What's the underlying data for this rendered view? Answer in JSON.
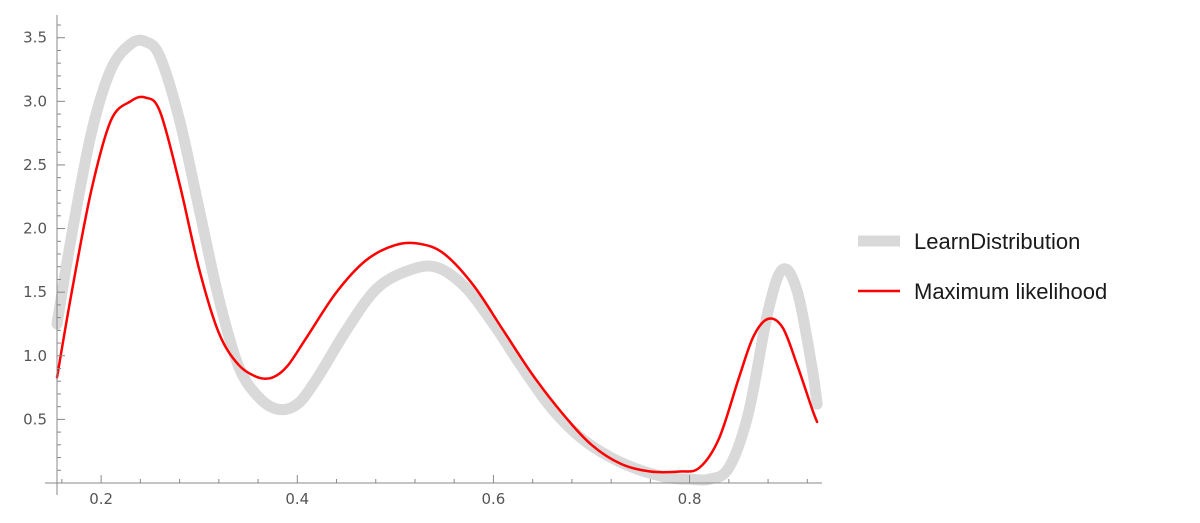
{
  "chart_data": {
    "type": "line",
    "title": "",
    "xlabel": "",
    "ylabel": "",
    "xlim": [
      0.155,
      0.935
    ],
    "ylim": [
      0.0,
      3.6
    ],
    "xticks": [
      0.2,
      0.4,
      0.6,
      0.8
    ],
    "xtick_labels": [
      "0.2",
      "0.4",
      "0.6",
      "0.8"
    ],
    "yticks": [
      0.5,
      1.0,
      1.5,
      2.0,
      2.5,
      3.0,
      3.5
    ],
    "ytick_labels": [
      "0.5",
      "1.0",
      "1.5",
      "2.0",
      "2.5",
      "3.0",
      "3.5"
    ],
    "grid": false,
    "legend_position": "right",
    "series": [
      {
        "name": "LearnDistribution",
        "color": "#d9d9d9",
        "x": [
          0.155,
          0.17,
          0.19,
          0.21,
          0.23,
          0.245,
          0.26,
          0.28,
          0.3,
          0.32,
          0.34,
          0.36,
          0.38,
          0.4,
          0.42,
          0.45,
          0.48,
          0.51,
          0.54,
          0.57,
          0.6,
          0.63,
          0.66,
          0.69,
          0.72,
          0.75,
          0.78,
          0.8,
          0.82,
          0.84,
          0.86,
          0.88,
          0.895,
          0.91,
          0.925,
          0.93
        ],
        "y": [
          1.25,
          1.95,
          2.75,
          3.25,
          3.45,
          3.47,
          3.35,
          2.85,
          2.15,
          1.45,
          0.92,
          0.68,
          0.58,
          0.62,
          0.82,
          1.2,
          1.52,
          1.66,
          1.7,
          1.55,
          1.25,
          0.9,
          0.58,
          0.35,
          0.2,
          0.1,
          0.04,
          0.03,
          0.03,
          0.12,
          0.55,
          1.35,
          1.68,
          1.5,
          0.9,
          0.62
        ]
      },
      {
        "name": "Maximum likelihood",
        "color": "#ff0000",
        "x": [
          0.155,
          0.17,
          0.19,
          0.21,
          0.23,
          0.245,
          0.26,
          0.28,
          0.3,
          0.32,
          0.34,
          0.36,
          0.375,
          0.39,
          0.41,
          0.44,
          0.47,
          0.5,
          0.525,
          0.55,
          0.58,
          0.61,
          0.64,
          0.67,
          0.7,
          0.73,
          0.76,
          0.79,
          0.81,
          0.83,
          0.85,
          0.865,
          0.88,
          0.895,
          0.91,
          0.925,
          0.93
        ],
        "y": [
          0.83,
          1.5,
          2.3,
          2.85,
          3.0,
          3.03,
          2.92,
          2.35,
          1.68,
          1.18,
          0.93,
          0.83,
          0.83,
          0.92,
          1.15,
          1.5,
          1.75,
          1.87,
          1.88,
          1.8,
          1.55,
          1.2,
          0.85,
          0.55,
          0.3,
          0.15,
          0.09,
          0.09,
          0.12,
          0.35,
          0.82,
          1.15,
          1.29,
          1.22,
          0.92,
          0.58,
          0.48
        ]
      }
    ]
  }
}
